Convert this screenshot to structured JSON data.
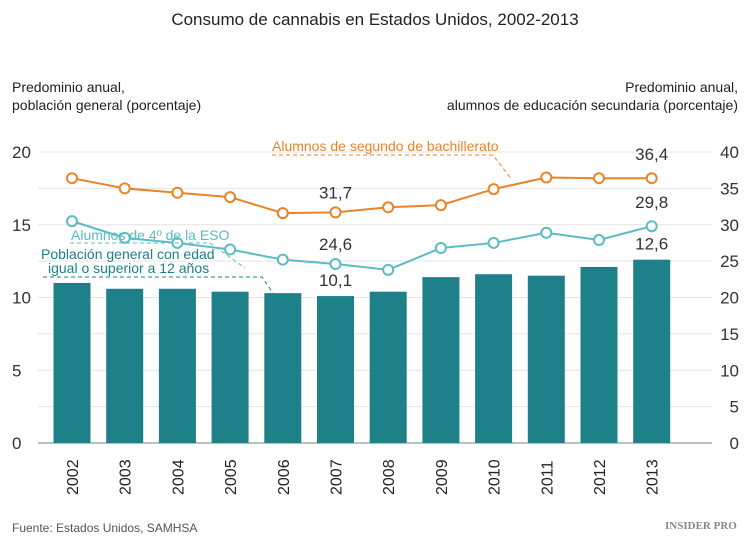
{
  "chart_data": {
    "type": "bar+line",
    "title": "Consumo de cannabis en Estados Unidos, 2002-2013",
    "ylabel_left": "Predominio anual,\npoblación general (porcentaje)",
    "ylabel_right": "Predominio anual,\nalumnos de educación secundaria (porcentaje)",
    "categories": [
      "2002",
      "2003",
      "2004",
      "2005",
      "2006",
      "2007",
      "2008",
      "2009",
      "2010",
      "2011",
      "2012",
      "2013"
    ],
    "ylim_left": [
      0,
      20
    ],
    "ylim_right": [
      0,
      40
    ],
    "yticks_left": [
      "0",
      "5",
      "10",
      "15",
      "20"
    ],
    "yticks_right": [
      "0",
      "5",
      "10",
      "15",
      "20",
      "25",
      "30",
      "35",
      "40"
    ],
    "grid": true,
    "series": [
      {
        "name": "Población general con edad igual o superior a 12 años",
        "type": "bar",
        "axis": "left",
        "color": "#1e8189",
        "values": [
          11.0,
          10.6,
          10.6,
          10.4,
          10.3,
          10.1,
          10.4,
          11.4,
          11.6,
          11.5,
          12.1,
          12.6
        ]
      },
      {
        "name": "Alumnos de segundo de bachillerato",
        "type": "line",
        "axis": "right",
        "color": "#e8842a",
        "values": [
          36.4,
          35.0,
          34.4,
          33.8,
          31.6,
          31.7,
          32.4,
          32.7,
          34.9,
          36.5,
          36.4,
          36.4
        ]
      },
      {
        "name": "Alumnos de 4º de la ESO",
        "type": "line",
        "axis": "right",
        "color": "#5bbcc4",
        "values": [
          30.5,
          28.2,
          27.5,
          26.6,
          25.2,
          24.6,
          23.8,
          26.8,
          27.5,
          28.9,
          27.9,
          29.8
        ]
      }
    ],
    "data_labels": [
      {
        "series": 1,
        "index": 5,
        "text": "31,7"
      },
      {
        "series": 1,
        "index": 11,
        "text": "36,4"
      },
      {
        "series": 2,
        "index": 5,
        "text": "24,6"
      },
      {
        "series": 2,
        "index": 11,
        "text": "29,8"
      },
      {
        "series": 0,
        "index": 5,
        "text": "10,1"
      },
      {
        "series": 0,
        "index": 11,
        "text": "12,6"
      }
    ],
    "legend_labels": {
      "orange": "Alumnos de segundo de bachillerato",
      "light": "Alumnos de 4º de la ESO",
      "bar_line1": "Población general con edad",
      "bar_line2": "igual o superior a 12 años"
    }
  },
  "footer": {
    "source": "Fuente: Estados Unidos, SAMHSA",
    "logo": "INSIDER PRO"
  }
}
